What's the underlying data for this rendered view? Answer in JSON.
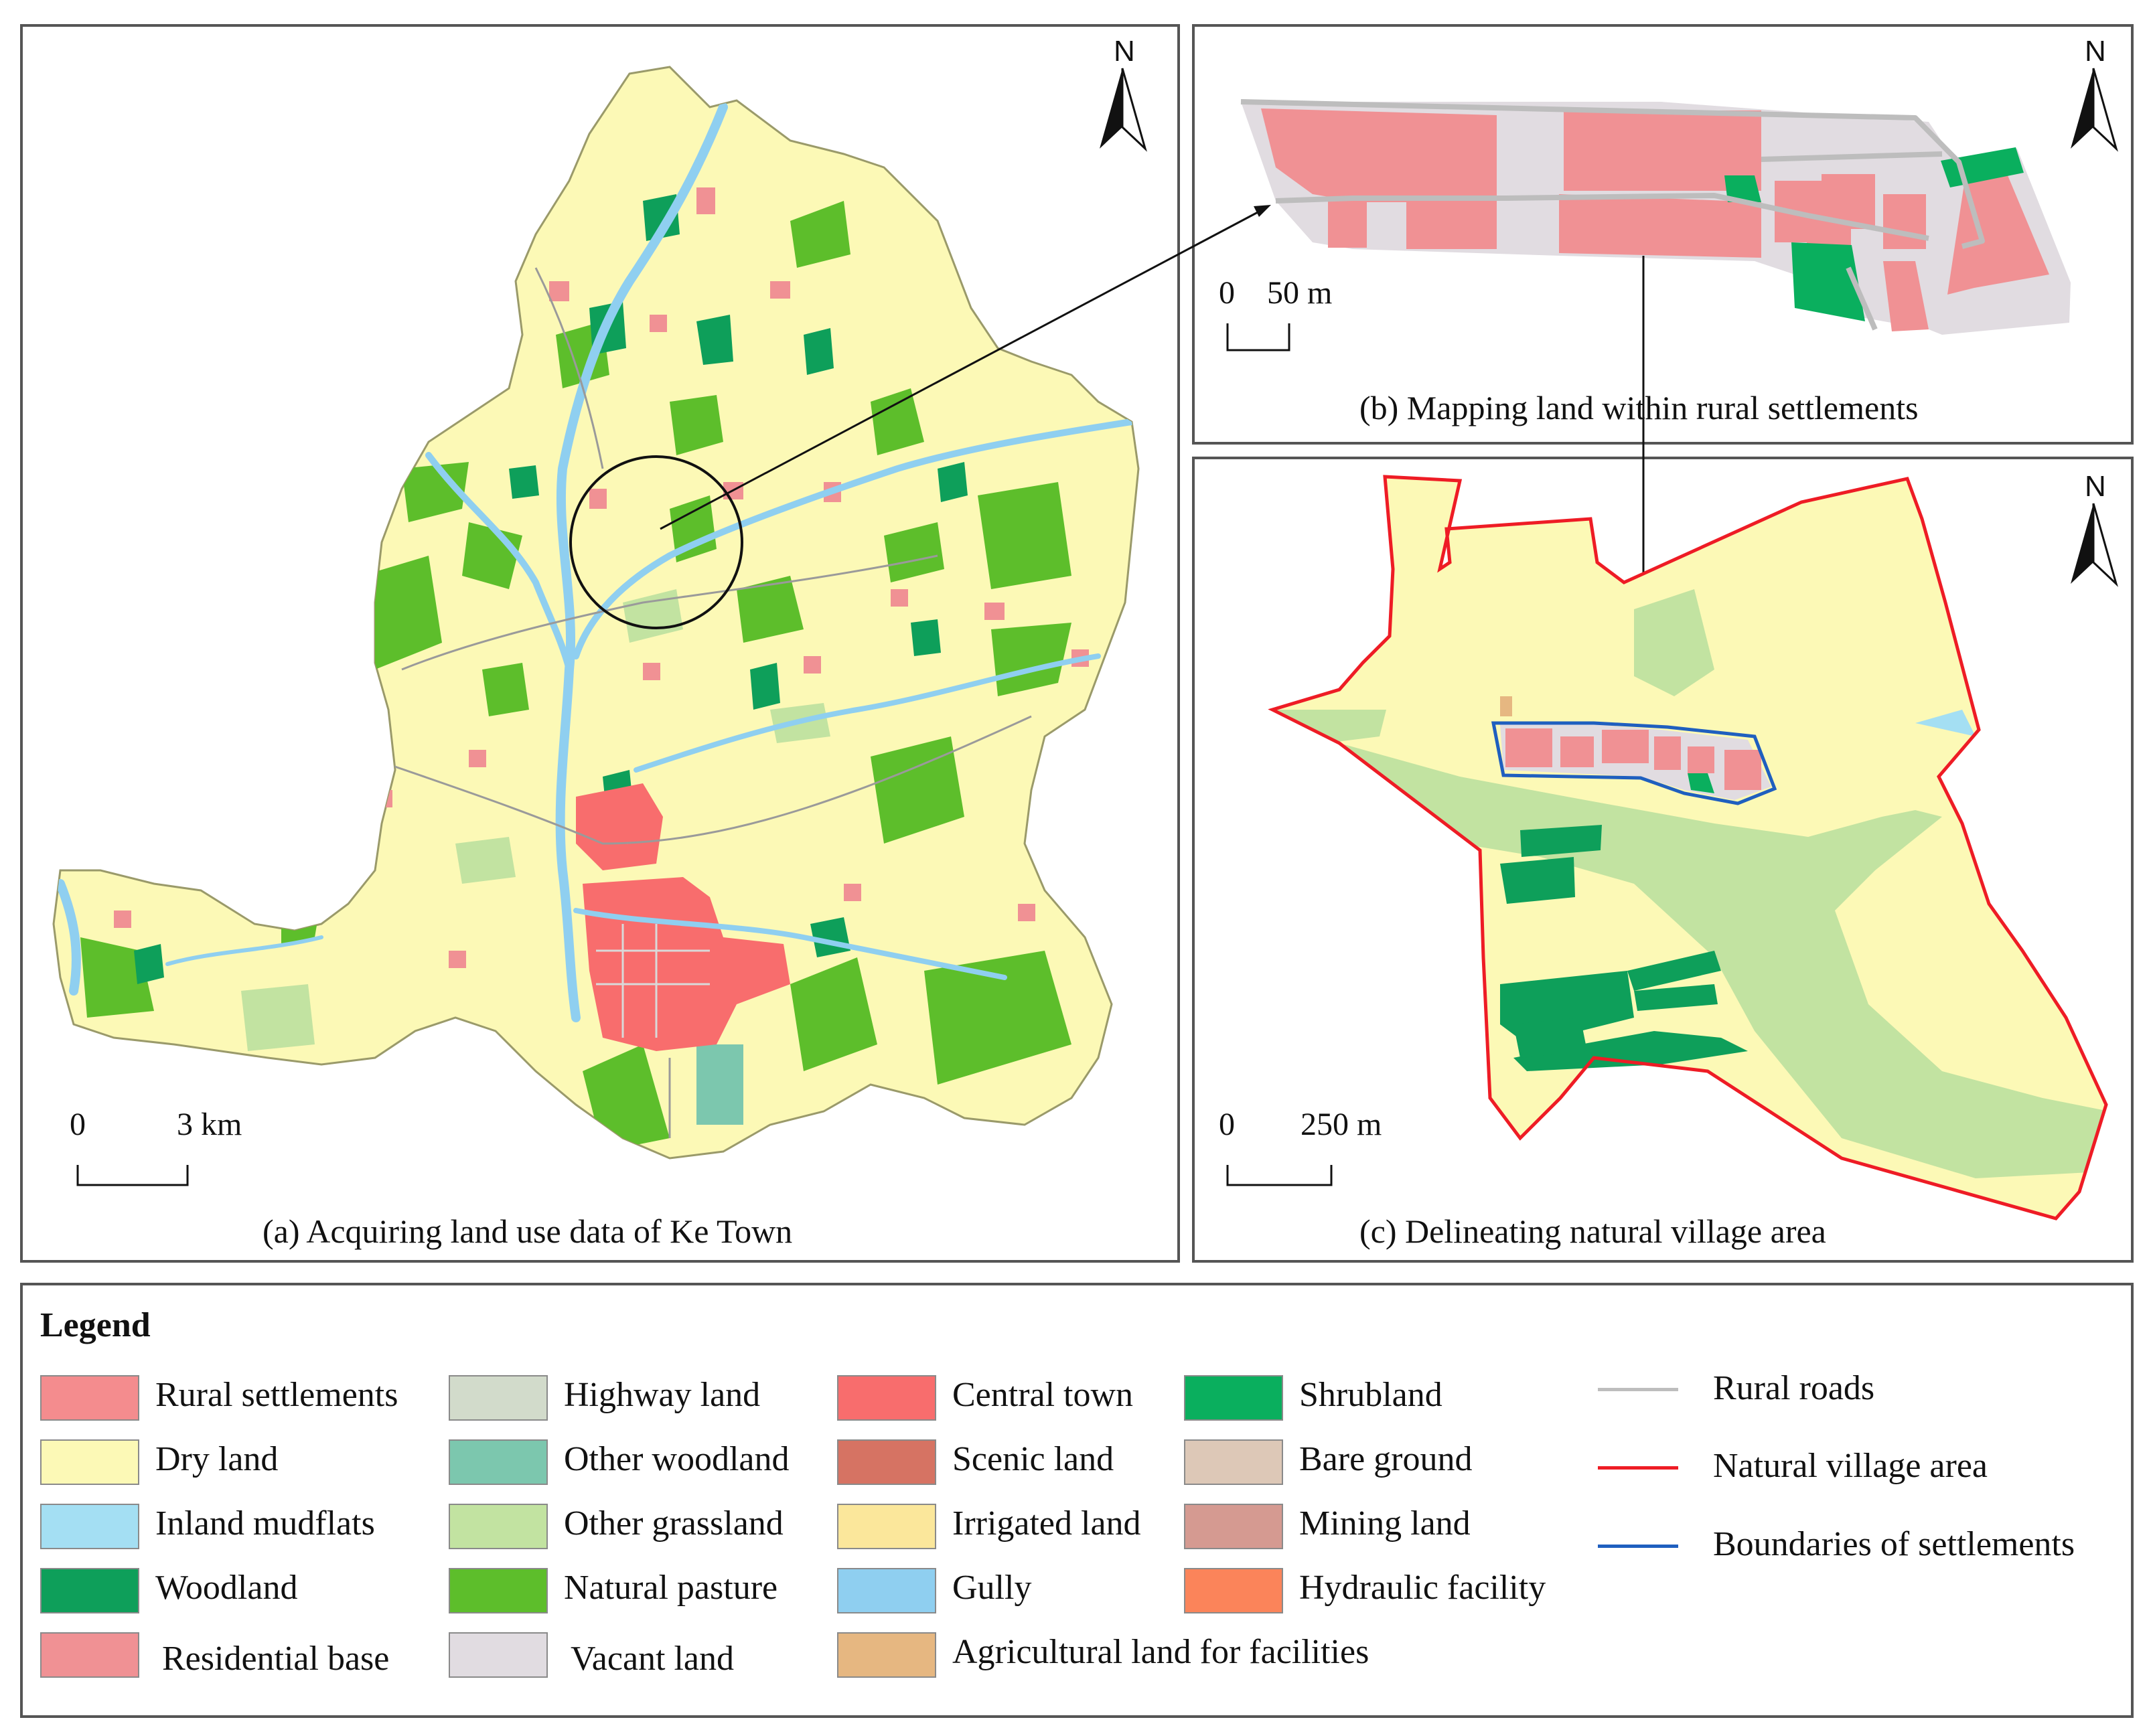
{
  "panels": {
    "a": {
      "caption": "(a) Acquiring land use data of Ke Town",
      "north": "N",
      "scale_zero": "0",
      "scale_label": "3 km"
    },
    "b": {
      "caption": "(b) Mapping land within rural settlements",
      "north": "N",
      "scale_zero": "0",
      "scale_label": "50 m"
    },
    "c": {
      "caption": "(c) Delineating natural village area",
      "north": "N",
      "scale_zero": "0",
      "scale_label": "250 m"
    }
  },
  "legend": {
    "title": "Legend",
    "areas": [
      {
        "label": "Rural settlements",
        "color": "#F48C8E"
      },
      {
        "label": "Dry land",
        "color": "#FCF9B6"
      },
      {
        "label": "Inland mudflats",
        "color": "#A4DFF3"
      },
      {
        "label": "Woodland",
        "color": "#0E9F5A"
      },
      {
        "label": "Residential base",
        "color": "#F09194"
      },
      {
        "label": "Highway land",
        "color": "#D2DBCB"
      },
      {
        "label": "Other woodland",
        "color": "#7CC7AE"
      },
      {
        "label": "Other grassland",
        "color": "#C2E3A1"
      },
      {
        "label": "Natural pasture",
        "color": "#5DBE2B"
      },
      {
        "label": "Vacant land",
        "color": "#E1DCE1"
      },
      {
        "label": "Central town",
        "color": "#F86D6D"
      },
      {
        "label": "Scenic land",
        "color": "#D67363"
      },
      {
        "label": "Irrigated land",
        "color": "#FBE79B"
      },
      {
        "label": "Gully",
        "color": "#8FCFF0"
      },
      {
        "label": "Agricultural land for facilities",
        "color": "#E6B781"
      },
      {
        "label": "Shrubland",
        "color": "#0AAF5E"
      },
      {
        "label": "Bare ground",
        "color": "#DDC8B7"
      },
      {
        "label": "Mining land",
        "color": "#D59A91"
      },
      {
        "label": "Hydraulic facility",
        "color": "#FB845A"
      }
    ],
    "lines": [
      {
        "label": "Rural roads",
        "color": "#BDBDBD"
      },
      {
        "label": "Natural village area",
        "color": "#EE1C25"
      },
      {
        "label": "Boundaries of settlements",
        "color": "#1F5FBF"
      }
    ]
  }
}
